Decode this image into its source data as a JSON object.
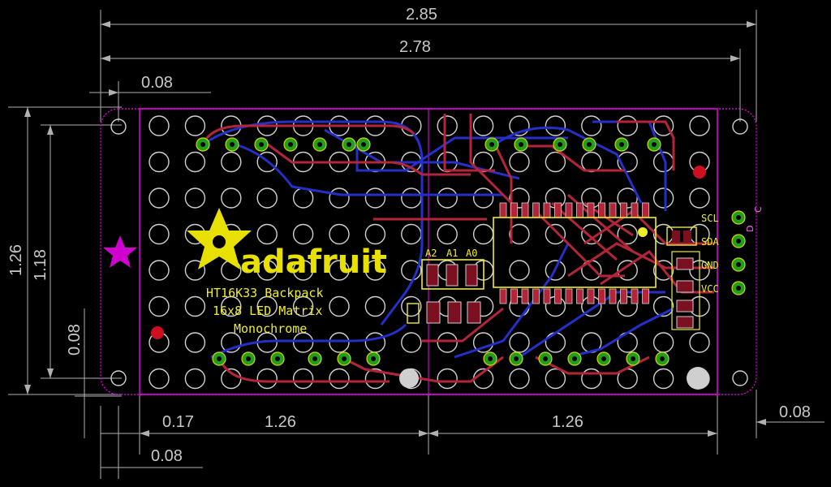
{
  "dimensions": {
    "overall_width": "2.85",
    "inner_width": "2.78",
    "top_offset": "0.08",
    "overall_height": "1.26",
    "inner_height": "1.18",
    "left_vertical_offset": "0.08",
    "bottom_left_offset": "0.17",
    "left_matrix_width": "1.26",
    "right_matrix_width": "1.26",
    "bottom_right_offset": "0.08",
    "bottom_offset": "0.08"
  },
  "silkscreen": {
    "logo": "adafruit",
    "line1": "HT16K33 Backpack",
    "line2": "16x8 LED Matrix",
    "line3": "Monochrome",
    "addr_a2": "A2",
    "addr_a1": "A1",
    "addr_a0": "A0",
    "pin_scl": "SCL",
    "pin_sda": "SDA",
    "pin_gnd": "GND",
    "pin_vcc": "VCC",
    "side_d": "D",
    "side_c": "C"
  },
  "colors": {
    "top_copper": "#b3263a",
    "bottom_copper": "#2430c8",
    "silkscreen": "#f0ee2a",
    "board_outline": "#ff00ff",
    "pads": "#1f9e1f"
  }
}
